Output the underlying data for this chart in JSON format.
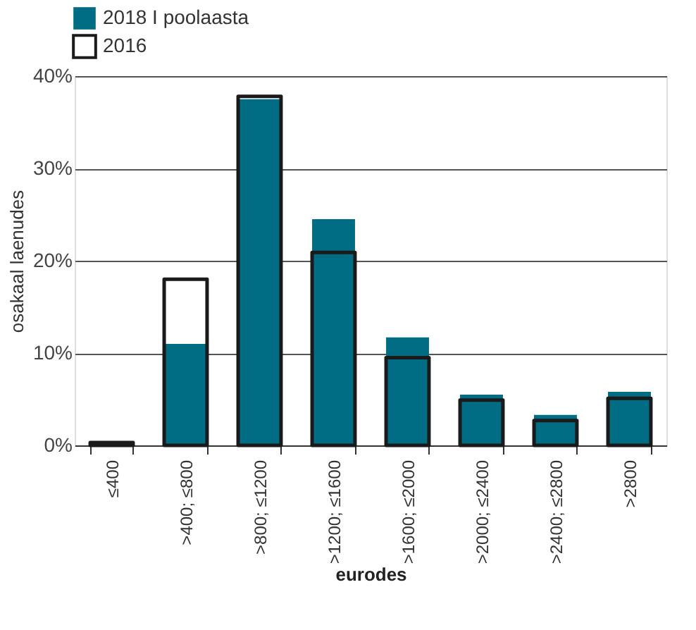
{
  "chart_data": {
    "type": "bar",
    "xlabel": "eurodes",
    "ylabel": "osakaal laenudes",
    "categories": [
      "≤400",
      ">400; ≤800",
      ">800; ≤1200",
      ">1200; ≤1600",
      ">1600; ≤2000",
      ">2000; ≤2400",
      ">2400; ≤2800",
      ">2800"
    ],
    "series": [
      {
        "name": "2018 I poolaasta",
        "color": "#006d84",
        "values": [
          0.1,
          11,
          37.5,
          24.5,
          11.7,
          5.5,
          3.3,
          5.8
        ]
      },
      {
        "name": "2016",
        "color": "#1a1a1a",
        "values": [
          0.3,
          18,
          37.8,
          20.9,
          9.5,
          4.9,
          2.7,
          5.1
        ]
      }
    ],
    "ylim": [
      0,
      40
    ],
    "yticks": [
      {
        "value": 0,
        "label": "0%"
      },
      {
        "value": 10,
        "label": "10%"
      },
      {
        "value": 20,
        "label": "20%"
      },
      {
        "value": 30,
        "label": "30%"
      },
      {
        "value": 40,
        "label": "40%"
      }
    ],
    "grid": "y",
    "legend": "top left"
  }
}
